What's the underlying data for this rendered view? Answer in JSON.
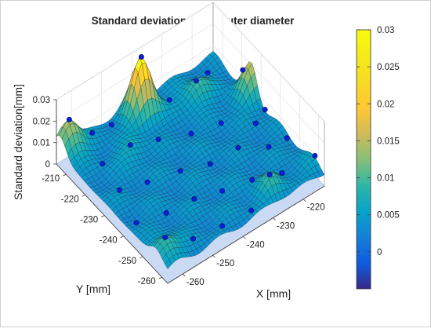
{
  "chart_data": {
    "type": "surface3d",
    "title": "Standard deviation map - outer diameter",
    "xlabel": "X [mm]",
    "ylabel": "Y [mm]",
    "zlabel": "Standard deviation[mm]",
    "x_ticks": [
      "-260",
      "-250",
      "-240",
      "-230",
      "-220"
    ],
    "y_ticks": [
      "-260",
      "-250",
      "-240",
      "-230",
      "-220",
      "-210"
    ],
    "z_ticks": [
      "0",
      "0.01",
      "0.02",
      "0.03"
    ],
    "x_range": [
      -265,
      -213
    ],
    "y_range": [
      -263,
      -205
    ],
    "z_range": [
      0,
      0.03
    ],
    "colorbar": {
      "colormap": "parula",
      "range": [
        -0.005,
        0.03
      ],
      "ticks": [
        "0",
        "0.005",
        "0.01",
        "0.015",
        "0.02",
        "0.025",
        "0.03"
      ]
    },
    "peaks": [
      {
        "x": -240,
        "y": -210,
        "z": 0.032
      },
      {
        "x": -213,
        "y": -225,
        "z": 0.02
      },
      {
        "x": -262,
        "y": -207,
        "z": 0.021
      },
      {
        "x": -225,
        "y": -215,
        "z": 0.014
      },
      {
        "x": -262,
        "y": -257,
        "z": 0.014
      },
      {
        "x": -228,
        "y": -258,
        "z": 0.012
      },
      {
        "x": -250,
        "y": -220,
        "z": 0.01
      },
      {
        "x": -215,
        "y": -258,
        "z": 0.008
      }
    ],
    "base_level": 0.006,
    "measurement_points": [
      {
        "x": -262,
        "y": -207
      },
      {
        "x": -255,
        "y": -208
      },
      {
        "x": -248,
        "y": -207
      },
      {
        "x": -240,
        "y": -210
      },
      {
        "x": -232,
        "y": -212
      },
      {
        "x": -225,
        "y": -215
      },
      {
        "x": -218,
        "y": -210
      },
      {
        "x": -214,
        "y": -222
      },
      {
        "x": -213,
        "y": -232
      },
      {
        "x": -214,
        "y": -245
      },
      {
        "x": -213,
        "y": -258
      },
      {
        "x": -258,
        "y": -218
      },
      {
        "x": -250,
        "y": -220
      },
      {
        "x": -242,
        "y": -222
      },
      {
        "x": -233,
        "y": -225
      },
      {
        "x": -225,
        "y": -228
      },
      {
        "x": -218,
        "y": -235
      },
      {
        "x": -260,
        "y": -230
      },
      {
        "x": -252,
        "y": -232
      },
      {
        "x": -243,
        "y": -235
      },
      {
        "x": -235,
        "y": -238
      },
      {
        "x": -227,
        "y": -240
      },
      {
        "x": -220,
        "y": -245
      },
      {
        "x": -262,
        "y": -242
      },
      {
        "x": -254,
        "y": -245
      },
      {
        "x": -246,
        "y": -247
      },
      {
        "x": -238,
        "y": -249
      },
      {
        "x": -230,
        "y": -252
      },
      {
        "x": -222,
        "y": -255
      },
      {
        "x": -262,
        "y": -257
      },
      {
        "x": -254,
        "y": -259
      },
      {
        "x": -245,
        "y": -260
      },
      {
        "x": -236,
        "y": -261
      },
      {
        "x": -228,
        "y": -258
      }
    ]
  }
}
